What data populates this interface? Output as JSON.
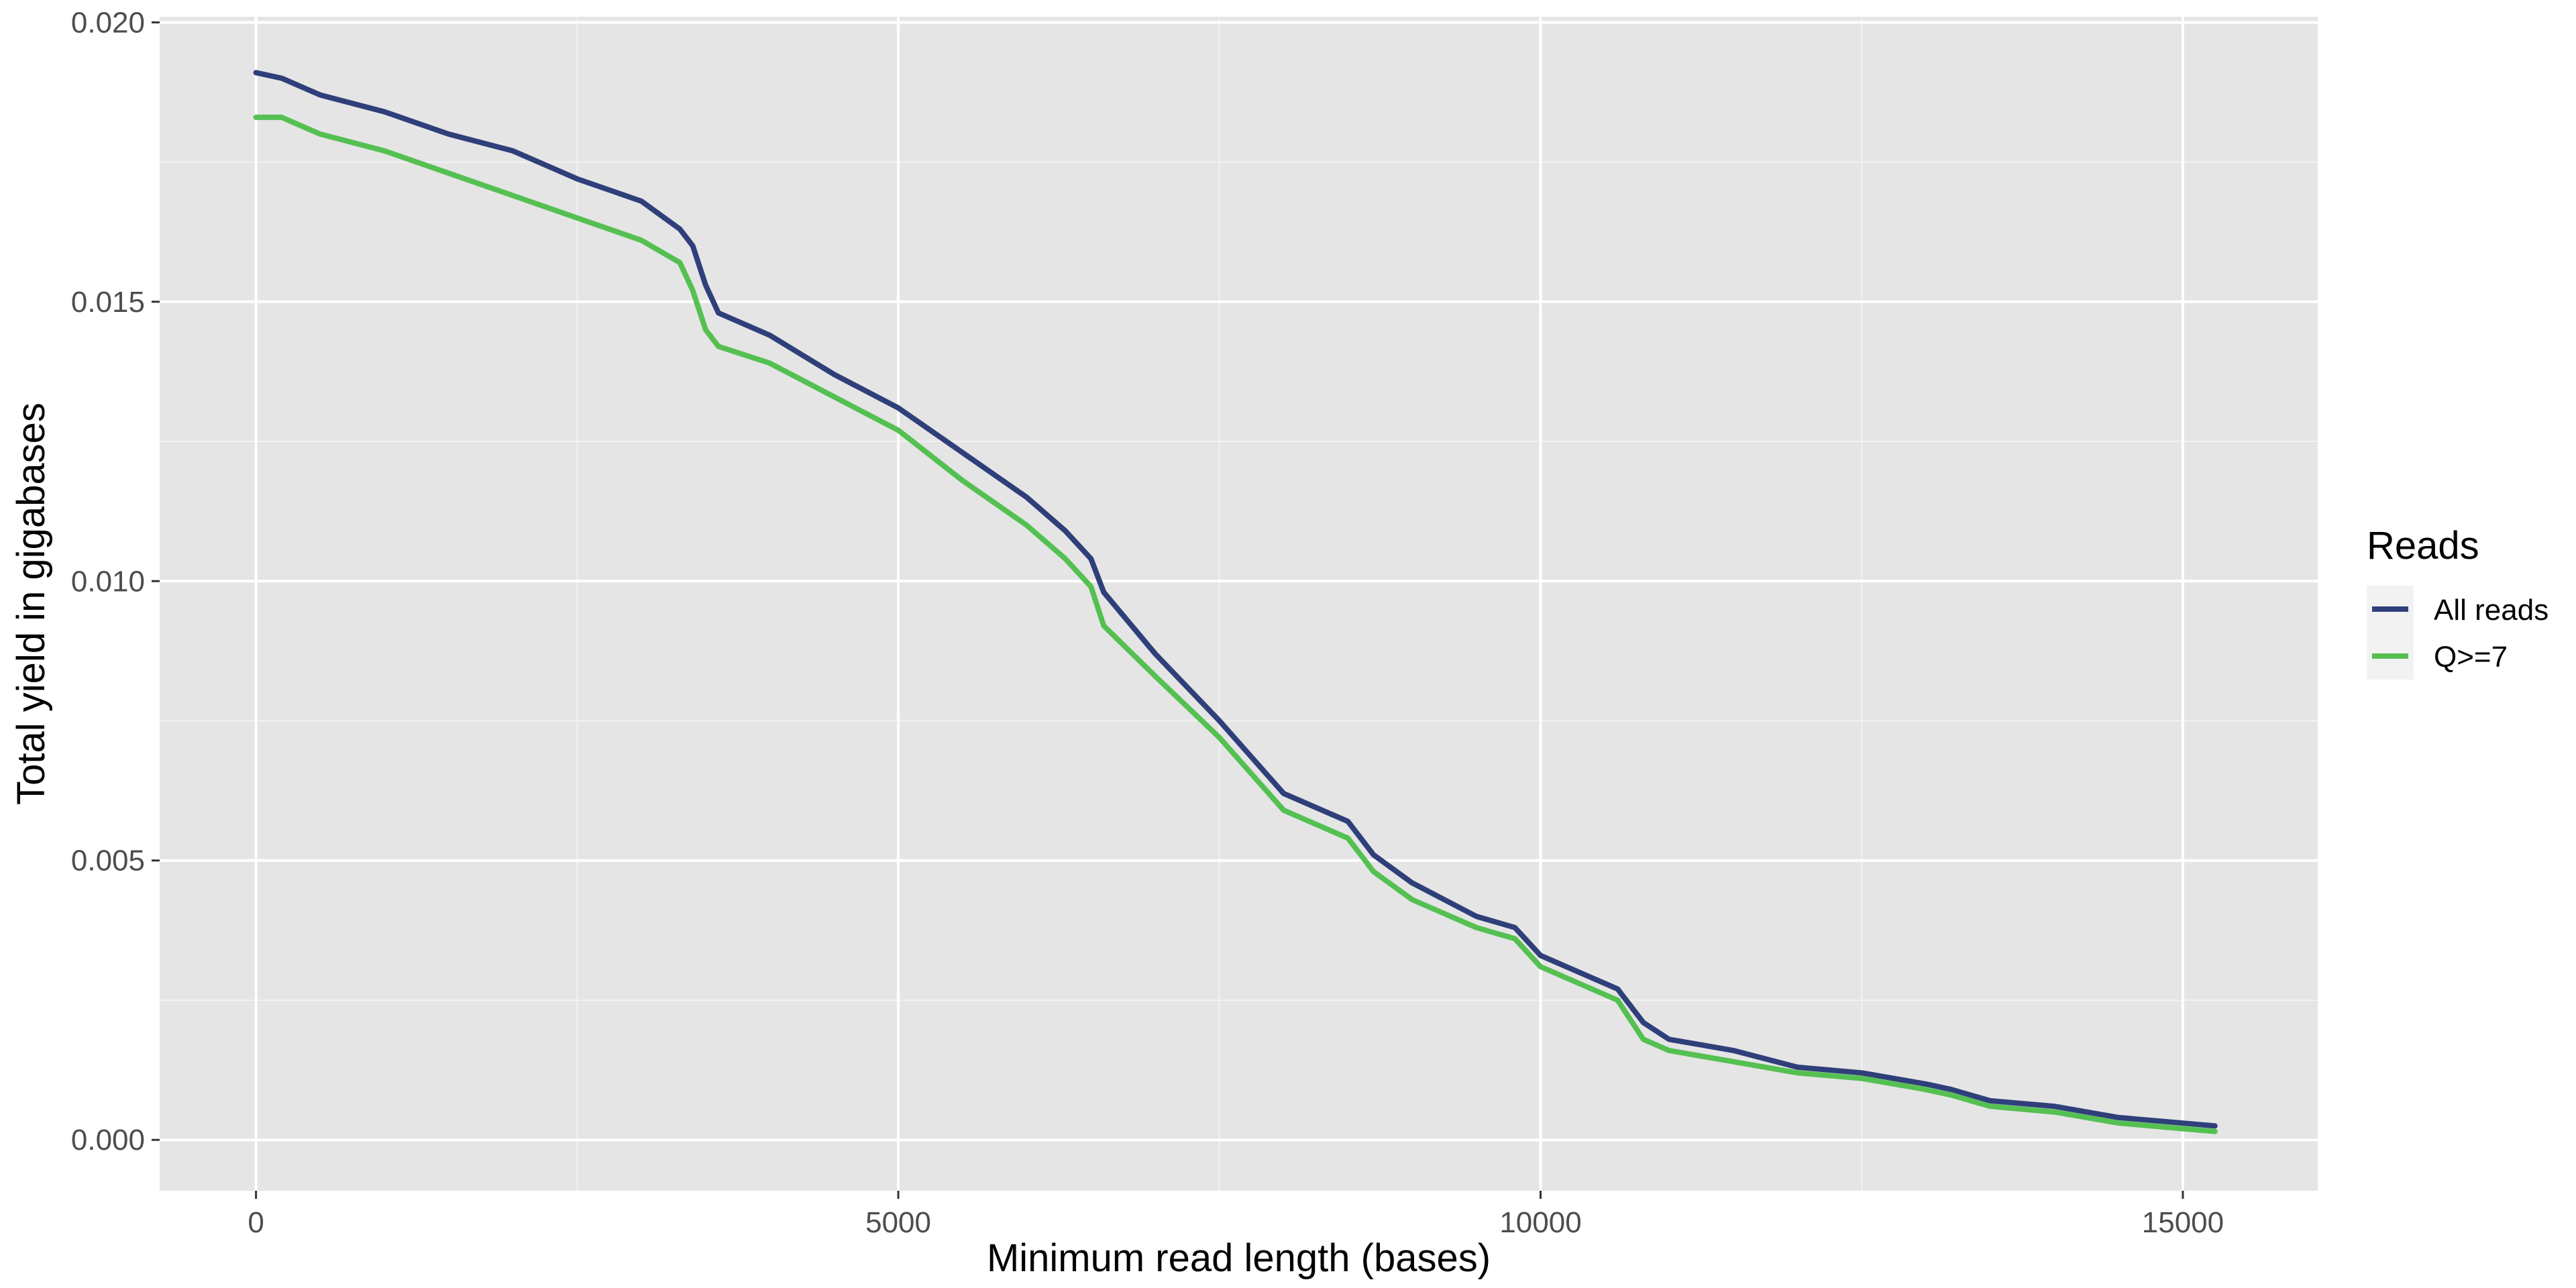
{
  "chart_data": {
    "type": "line",
    "xlabel": "Minimum read length (bases)",
    "ylabel": "Total yield in gigabases",
    "xlim": [
      -750,
      16050
    ],
    "ylim": [
      -0.00091,
      0.0201
    ],
    "x_ticks": [
      0,
      5000,
      10000,
      15000
    ],
    "x_tick_labels": [
      "0",
      "5000",
      "10000",
      "15000"
    ],
    "y_ticks": [
      0.0,
      0.005,
      0.01,
      0.015,
      0.02
    ],
    "y_tick_labels": [
      "0.000",
      "0.005",
      "0.010",
      "0.015",
      "0.020"
    ],
    "grid": true,
    "background": "#e5e5e5",
    "legend": {
      "title": "Reads",
      "placement": "right",
      "entries": [
        "All reads",
        "Q>=7"
      ]
    },
    "series": [
      {
        "name": "All reads",
        "color": "#2f3f7a",
        "x": [
          0,
          200,
          500,
          1000,
          1500,
          2000,
          2500,
          3000,
          3300,
          3400,
          3500,
          3600,
          4000,
          4500,
          5000,
          5500,
          6000,
          6300,
          6500,
          6600,
          7000,
          7500,
          8000,
          8500,
          8700,
          9000,
          9500,
          9800,
          10000,
          10300,
          10600,
          10800,
          11000,
          11500,
          12000,
          12500,
          13000,
          13200,
          13500,
          14000,
          14500,
          15000,
          15250
        ],
        "values": [
          0.0191,
          0.019,
          0.0187,
          0.0184,
          0.018,
          0.0177,
          0.0172,
          0.0168,
          0.0163,
          0.016,
          0.0153,
          0.0148,
          0.0144,
          0.0137,
          0.0131,
          0.0123,
          0.0115,
          0.0109,
          0.0104,
          0.0098,
          0.0087,
          0.0075,
          0.0062,
          0.0057,
          0.0051,
          0.0046,
          0.004,
          0.0038,
          0.0033,
          0.003,
          0.0027,
          0.0021,
          0.0018,
          0.0016,
          0.0013,
          0.0012,
          0.001,
          0.0009,
          0.0007,
          0.0006,
          0.0004,
          0.0003,
          0.00025
        ]
      },
      {
        "name": "Q>=7",
        "color": "#55c052",
        "x": [
          0,
          200,
          500,
          1000,
          1500,
          2000,
          2500,
          3000,
          3300,
          3400,
          3500,
          3600,
          4000,
          4500,
          5000,
          5500,
          6000,
          6300,
          6500,
          6600,
          7000,
          7500,
          8000,
          8500,
          8700,
          9000,
          9500,
          9800,
          10000,
          10300,
          10600,
          10800,
          11000,
          11500,
          12000,
          12500,
          13000,
          13200,
          13500,
          14000,
          14500,
          15000,
          15250
        ],
        "values": [
          0.0183,
          0.0183,
          0.018,
          0.0177,
          0.0173,
          0.0169,
          0.0165,
          0.0161,
          0.0157,
          0.0152,
          0.0145,
          0.0142,
          0.0139,
          0.0133,
          0.0127,
          0.0118,
          0.011,
          0.0104,
          0.0099,
          0.0092,
          0.0083,
          0.0072,
          0.0059,
          0.0054,
          0.0048,
          0.0043,
          0.0038,
          0.0036,
          0.0031,
          0.0028,
          0.0025,
          0.0018,
          0.0016,
          0.0014,
          0.0012,
          0.0011,
          0.0009,
          0.0008,
          0.0006,
          0.0005,
          0.0003,
          0.0002,
          0.00015
        ]
      }
    ]
  }
}
